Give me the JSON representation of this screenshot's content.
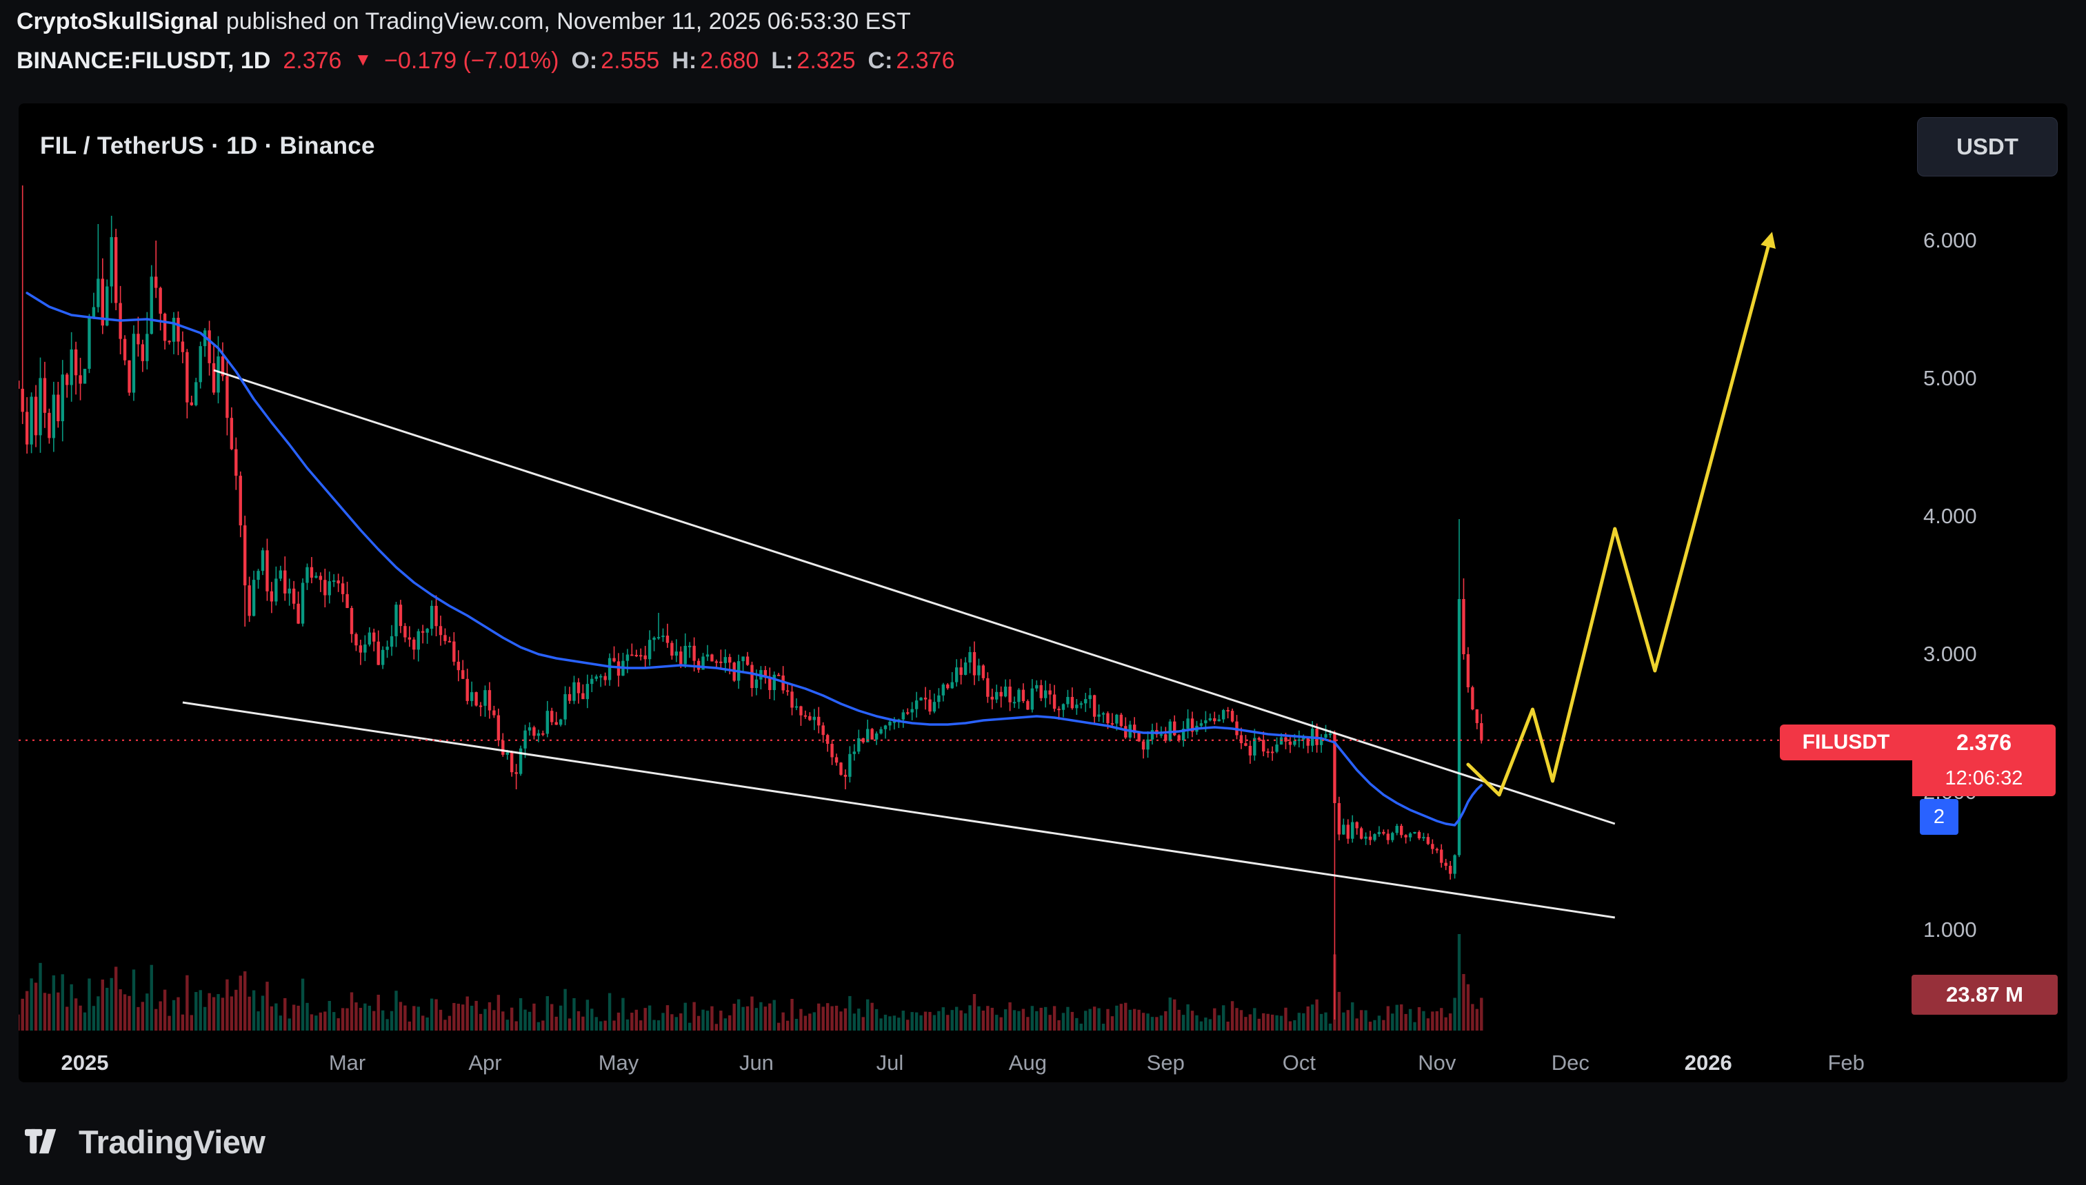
{
  "attribution": {
    "author": "CryptoSkullSignal",
    "rest": "published on TradingView.com, November 11, 2025 06:53:30 EST"
  },
  "symbol_line": {
    "symbol": "BINANCE:FILUSDT, 1D",
    "price": "2.376",
    "direction": "▼",
    "change": "−0.179 (−7.01%)",
    "o_label": "O:",
    "o": "2.555",
    "h_label": "H:",
    "h": "2.680",
    "l_label": "L:",
    "l": "2.325",
    "c_label": "C:",
    "c": "2.376"
  },
  "chart": {
    "title": "FIL / TetherUS · 1D · Binance",
    "currency_button": "USDT",
    "price_tag": {
      "symbol": "FILUSDT",
      "price": "2.376",
      "countdown": "12:06:32"
    },
    "ma_tag": "2",
    "volume_tag": "23.87 M"
  },
  "footer": {
    "brand": "TradingView"
  },
  "chart_data": {
    "type": "candlestick",
    "symbol": "BINANCE:FILUSDT",
    "interval": "1D",
    "title": "FIL / TetherUS · 1D · Binance",
    "price_line": 2.376,
    "price_axis_range": [
      0.27,
      7.0
    ],
    "grid": false,
    "y_ticks": [
      {
        "label": "6.000",
        "p": 6
      },
      {
        "label": "5.000",
        "p": 5
      },
      {
        "label": "4.000",
        "p": 4
      },
      {
        "label": "3.000",
        "p": 3
      },
      {
        "label": "2.000",
        "p": 2
      },
      {
        "label": "1.000",
        "p": 1
      }
    ],
    "x_ticks": [
      {
        "label": "2025",
        "d": 0,
        "year": true
      },
      {
        "label": "Mar",
        "d": 59
      },
      {
        "label": "Apr",
        "d": 90
      },
      {
        "label": "May",
        "d": 120
      },
      {
        "label": "Jun",
        "d": 151
      },
      {
        "label": "Jul",
        "d": 181
      },
      {
        "label": "Aug",
        "d": 212
      },
      {
        "label": "Sep",
        "d": 243
      },
      {
        "label": "Oct",
        "d": 273
      },
      {
        "label": "Nov",
        "d": 304
      },
      {
        "label": "Dec",
        "d": 334
      },
      {
        "label": "2026",
        "d": 365,
        "year": true
      },
      {
        "label": "Feb",
        "d": 396
      }
    ],
    "map": {
      "x0": 96,
      "xpd": 6.45,
      "y0": 199,
      "ptop": 6,
      "ppx": 200,
      "vol_base": 1345,
      "vol_max": 140,
      "plot_right": 2738,
      "first_day": -15,
      "last_day": 314
    },
    "colors": {
      "up": "#089981",
      "down": "#f23645",
      "ma": "#2962ff",
      "trend": "#ffffff",
      "projection": "#efd32e",
      "price_line": "#f23645",
      "vol_up": "rgba(8,153,129,0.5)",
      "vol_down": "rgba(242,54,69,0.5)"
    },
    "closes": [
      [
        -15,
        5.05
      ],
      [
        -14,
        4.65
      ],
      [
        -13,
        4.5
      ],
      [
        -12,
        4.82
      ],
      [
        -11,
        4.7
      ],
      [
        -10,
        4.95
      ],
      [
        -9,
        4.78
      ],
      [
        -8,
        4.6
      ],
      [
        -7,
        4.88
      ],
      [
        -6,
        4.75
      ],
      [
        -5,
        5.0
      ],
      [
        -4,
        4.85
      ],
      [
        -3,
        5.1
      ],
      [
        -2,
        4.95
      ],
      [
        -1,
        5.05
      ],
      [
        0,
        5.2
      ],
      [
        1,
        5.35
      ],
      [
        2,
        5.6
      ],
      [
        3,
        5.85
      ],
      [
        4,
        5.5
      ],
      [
        5,
        5.7
      ],
      [
        6,
        5.95
      ],
      [
        7,
        5.55
      ],
      [
        8,
        5.25
      ],
      [
        9,
        5.1
      ],
      [
        10,
        4.95
      ],
      [
        11,
        5.2
      ],
      [
        12,
        5.3
      ],
      [
        13,
        5.15
      ],
      [
        14,
        5.45
      ],
      [
        15,
        5.6
      ],
      [
        16,
        5.8
      ],
      [
        17,
        5.5
      ],
      [
        18,
        5.25
      ],
      [
        19,
        5.4
      ],
      [
        20,
        5.5
      ],
      [
        21,
        5.3
      ],
      [
        22,
        5.1
      ],
      [
        23,
        4.95
      ],
      [
        24,
        4.85
      ],
      [
        25,
        5.05
      ],
      [
        26,
        5.2
      ],
      [
        27,
        5.35
      ],
      [
        28,
        5.15
      ],
      [
        29,
        5.0
      ],
      [
        30,
        5.1
      ],
      [
        31,
        4.9
      ],
      [
        32,
        4.75
      ],
      [
        33,
        4.6
      ],
      [
        34,
        4.25
      ],
      [
        35,
        3.85
      ],
      [
        36,
        3.55
      ],
      [
        37,
        3.3
      ],
      [
        38,
        3.5
      ],
      [
        39,
        3.62
      ],
      [
        40,
        3.68
      ],
      [
        41,
        3.5
      ],
      [
        42,
        3.42
      ],
      [
        43,
        3.55
      ],
      [
        44,
        3.62
      ],
      [
        45,
        3.48
      ],
      [
        46,
        3.55
      ],
      [
        47,
        3.42
      ],
      [
        48,
        3.3
      ],
      [
        49,
        3.45
      ],
      [
        50,
        3.55
      ],
      [
        52,
        3.62
      ],
      [
        54,
        3.45
      ],
      [
        56,
        3.55
      ],
      [
        58,
        3.4
      ],
      [
        60,
        3.22
      ],
      [
        62,
        3.05
      ],
      [
        64,
        3.18
      ],
      [
        66,
        2.95
      ],
      [
        68,
        3.12
      ],
      [
        70,
        3.28
      ],
      [
        72,
        3.12
      ],
      [
        74,
        3.0
      ],
      [
        76,
        3.18
      ],
      [
        78,
        3.32
      ],
      [
        80,
        3.2
      ],
      [
        82,
        3.05
      ],
      [
        84,
        2.9
      ],
      [
        86,
        2.72
      ],
      [
        88,
        2.6
      ],
      [
        90,
        2.72
      ],
      [
        92,
        2.5
      ],
      [
        94,
        2.32
      ],
      [
        96,
        2.18
      ],
      [
        97,
        2.1
      ],
      [
        98,
        2.32
      ],
      [
        100,
        2.48
      ],
      [
        102,
        2.4
      ],
      [
        104,
        2.56
      ],
      [
        106,
        2.5
      ],
      [
        108,
        2.66
      ],
      [
        110,
        2.78
      ],
      [
        112,
        2.7
      ],
      [
        114,
        2.86
      ],
      [
        116,
        2.8
      ],
      [
        118,
        2.92
      ],
      [
        120,
        2.86
      ],
      [
        122,
        2.96
      ],
      [
        124,
        3.06
      ],
      [
        126,
        2.96
      ],
      [
        128,
        3.12
      ],
      [
        130,
        3.2
      ],
      [
        132,
        3.05
      ],
      [
        134,
        2.95
      ],
      [
        136,
        3.06
      ],
      [
        138,
        2.96
      ],
      [
        140,
        3.02
      ],
      [
        142,
        2.9
      ],
      [
        144,
        2.97
      ],
      [
        146,
        2.86
      ],
      [
        148,
        2.92
      ],
      [
        150,
        2.8
      ],
      [
        152,
        2.86
      ],
      [
        154,
        2.76
      ],
      [
        156,
        2.82
      ],
      [
        158,
        2.7
      ],
      [
        160,
        2.6
      ],
      [
        162,
        2.5
      ],
      [
        164,
        2.56
      ],
      [
        166,
        2.42
      ],
      [
        168,
        2.3
      ],
      [
        170,
        2.16
      ],
      [
        171,
        2.08
      ],
      [
        172,
        2.26
      ],
      [
        174,
        2.36
      ],
      [
        176,
        2.46
      ],
      [
        178,
        2.4
      ],
      [
        180,
        2.52
      ],
      [
        182,
        2.56
      ],
      [
        184,
        2.62
      ],
      [
        186,
        2.56
      ],
      [
        188,
        2.66
      ],
      [
        190,
        2.62
      ],
      [
        192,
        2.72
      ],
      [
        194,
        2.76
      ],
      [
        196,
        2.86
      ],
      [
        198,
        2.96
      ],
      [
        199,
        3.0
      ],
      [
        200,
        2.9
      ],
      [
        202,
        2.8
      ],
      [
        204,
        2.7
      ],
      [
        206,
        2.76
      ],
      [
        208,
        2.66
      ],
      [
        210,
        2.72
      ],
      [
        212,
        2.66
      ],
      [
        214,
        2.76
      ],
      [
        216,
        2.7
      ],
      [
        218,
        2.6
      ],
      [
        220,
        2.7
      ],
      [
        222,
        2.66
      ],
      [
        224,
        2.6
      ],
      [
        226,
        2.66
      ],
      [
        228,
        2.56
      ],
      [
        230,
        2.46
      ],
      [
        232,
        2.52
      ],
      [
        234,
        2.42
      ],
      [
        236,
        2.46
      ],
      [
        238,
        2.36
      ],
      [
        240,
        2.42
      ],
      [
        242,
        2.36
      ],
      [
        244,
        2.46
      ],
      [
        246,
        2.42
      ],
      [
        248,
        2.5
      ],
      [
        250,
        2.46
      ],
      [
        252,
        2.52
      ],
      [
        254,
        2.46
      ],
      [
        256,
        2.56
      ],
      [
        258,
        2.5
      ],
      [
        260,
        2.4
      ],
      [
        262,
        2.32
      ],
      [
        264,
        2.36
      ],
      [
        266,
        2.3
      ],
      [
        268,
        2.4
      ],
      [
        270,
        2.36
      ],
      [
        272,
        2.42
      ],
      [
        274,
        2.36
      ],
      [
        276,
        2.42
      ],
      [
        278,
        2.36
      ],
      [
        280,
        2.4
      ],
      [
        281,
        1.92
      ],
      [
        282,
        1.7
      ],
      [
        283,
        1.76
      ],
      [
        284,
        1.66
      ],
      [
        285,
        1.76
      ],
      [
        286,
        1.7
      ],
      [
        288,
        1.64
      ],
      [
        290,
        1.7
      ],
      [
        292,
        1.66
      ],
      [
        294,
        1.7
      ],
      [
        296,
        1.73
      ],
      [
        298,
        1.68
      ],
      [
        300,
        1.7
      ],
      [
        301,
        1.66
      ],
      [
        302,
        1.6
      ],
      [
        303,
        1.56
      ],
      [
        304,
        1.62
      ],
      [
        305,
        1.52
      ],
      [
        306,
        1.46
      ],
      [
        307,
        1.42
      ],
      [
        308,
        1.56
      ],
      [
        309,
        3.4
      ],
      [
        310,
        3.0
      ],
      [
        311,
        2.76
      ],
      [
        312,
        2.6
      ],
      [
        313,
        2.5
      ],
      [
        314,
        2.376
      ]
    ],
    "wick_events": [
      {
        "d": -14,
        "h": 6.4
      },
      {
        "d": 3,
        "h": 6.12
      },
      {
        "d": 6,
        "h": 6.18
      },
      {
        "d": 16,
        "h": 6.0
      },
      {
        "d": 36,
        "l": 3.2
      },
      {
        "d": 97,
        "l": 2.02
      },
      {
        "d": 129,
        "h": 3.3
      },
      {
        "d": 171,
        "l": 2.02
      },
      {
        "d": 199,
        "h": 3.05
      },
      {
        "d": 281,
        "l": 0.35
      },
      {
        "d": 309,
        "h": 3.98
      },
      {
        "d": 310,
        "h": 3.55
      }
    ],
    "ma_line": [
      [
        -13,
        5.62
      ],
      [
        -8,
        5.52
      ],
      [
        -3,
        5.46
      ],
      [
        2,
        5.44
      ],
      [
        8,
        5.42
      ],
      [
        14,
        5.43
      ],
      [
        20,
        5.4
      ],
      [
        26,
        5.33
      ],
      [
        30,
        5.22
      ],
      [
        34,
        5.05
      ],
      [
        38,
        4.85
      ],
      [
        42,
        4.68
      ],
      [
        46,
        4.52
      ],
      [
        50,
        4.35
      ],
      [
        54,
        4.2
      ],
      [
        58,
        4.05
      ],
      [
        62,
        3.9
      ],
      [
        66,
        3.76
      ],
      [
        70,
        3.63
      ],
      [
        74,
        3.52
      ],
      [
        78,
        3.43
      ],
      [
        82,
        3.35
      ],
      [
        86,
        3.28
      ],
      [
        90,
        3.2
      ],
      [
        94,
        3.12
      ],
      [
        98,
        3.05
      ],
      [
        102,
        3.0
      ],
      [
        106,
        2.97
      ],
      [
        110,
        2.95
      ],
      [
        114,
        2.93
      ],
      [
        118,
        2.91
      ],
      [
        122,
        2.9
      ],
      [
        126,
        2.9
      ],
      [
        130,
        2.91
      ],
      [
        134,
        2.92
      ],
      [
        138,
        2.91
      ],
      [
        142,
        2.9
      ],
      [
        146,
        2.88
      ],
      [
        150,
        2.86
      ],
      [
        154,
        2.83
      ],
      [
        158,
        2.79
      ],
      [
        162,
        2.75
      ],
      [
        166,
        2.7
      ],
      [
        170,
        2.64
      ],
      [
        174,
        2.59
      ],
      [
        178,
        2.55
      ],
      [
        182,
        2.52
      ],
      [
        186,
        2.5
      ],
      [
        190,
        2.49
      ],
      [
        194,
        2.49
      ],
      [
        198,
        2.5
      ],
      [
        202,
        2.52
      ],
      [
        206,
        2.53
      ],
      [
        210,
        2.54
      ],
      [
        214,
        2.55
      ],
      [
        218,
        2.54
      ],
      [
        222,
        2.52
      ],
      [
        226,
        2.5
      ],
      [
        230,
        2.48
      ],
      [
        234,
        2.45
      ],
      [
        238,
        2.43
      ],
      [
        242,
        2.43
      ],
      [
        246,
        2.44
      ],
      [
        250,
        2.46
      ],
      [
        254,
        2.47
      ],
      [
        258,
        2.46
      ],
      [
        262,
        2.44
      ],
      [
        266,
        2.42
      ],
      [
        270,
        2.41
      ],
      [
        274,
        2.4
      ],
      [
        278,
        2.39
      ],
      [
        281,
        2.36
      ],
      [
        283,
        2.28
      ],
      [
        286,
        2.16
      ],
      [
        289,
        2.06
      ],
      [
        292,
        1.98
      ],
      [
        295,
        1.92
      ],
      [
        298,
        1.87
      ],
      [
        301,
        1.83
      ],
      [
        304,
        1.79
      ],
      [
        306,
        1.77
      ],
      [
        308,
        1.76
      ],
      [
        309,
        1.8
      ],
      [
        310,
        1.86
      ],
      [
        311,
        1.93
      ],
      [
        312,
        1.98
      ],
      [
        313,
        2.02
      ],
      [
        314,
        2.05
      ]
    ],
    "trendlines": [
      {
        "d1": 29,
        "p1": 5.06,
        "d2": 344,
        "p2": 1.77
      },
      {
        "d1": 22,
        "p1": 2.65,
        "d2": 344,
        "p2": 1.09
      }
    ],
    "projection": [
      [
        311,
        2.2
      ],
      [
        318,
        1.98
      ],
      [
        325.5,
        2.6
      ],
      [
        330,
        2.08
      ],
      [
        344,
        3.91
      ],
      [
        353,
        2.88
      ],
      [
        379,
        6.02
      ]
    ]
  }
}
